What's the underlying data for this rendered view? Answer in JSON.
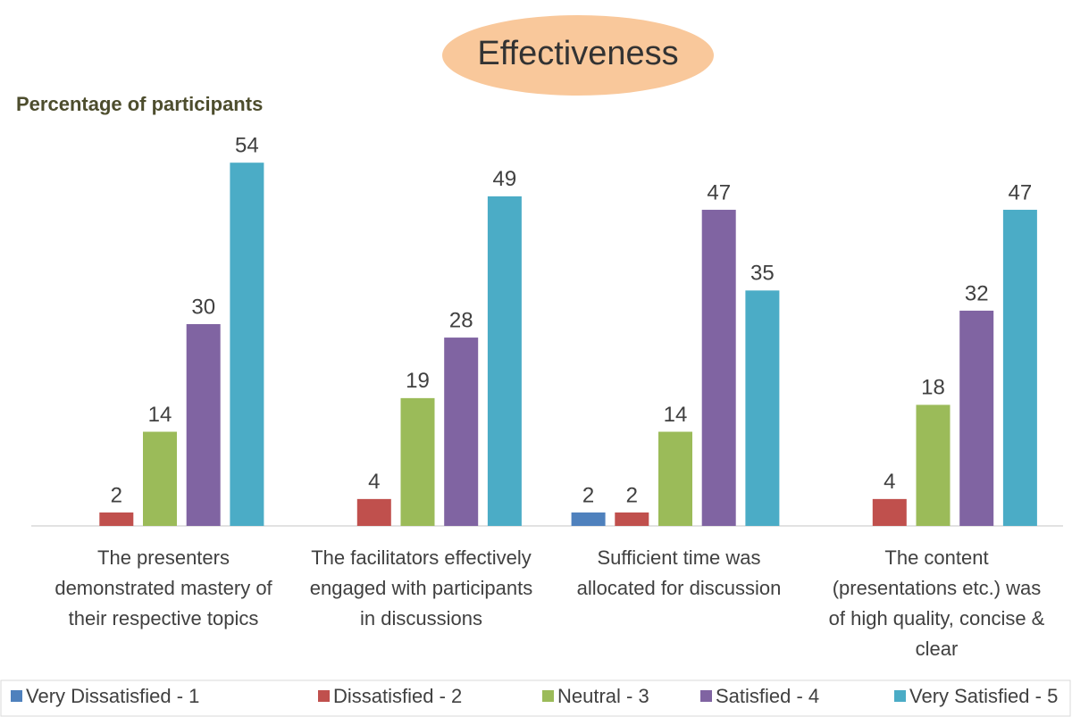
{
  "chart_data": {
    "type": "bar",
    "title": "Effectiveness",
    "y_label": "Percentage of participants",
    "categories": [
      "The presenters demonstrated mastery of their respective topics",
      "The facilitators effectively engaged with participants in discussions",
      "Sufficient time was allocated for discussion",
      "The content (presentations etc.) was of high quality, concise & clear"
    ],
    "series": [
      {
        "name": "Very Dissatisfied - 1",
        "color": "#4f81bd",
        "values": [
          null,
          null,
          2,
          null
        ]
      },
      {
        "name": "Dissatisfied - 2",
        "color": "#c0504d",
        "values": [
          2,
          4,
          2,
          4
        ]
      },
      {
        "name": "Neutral - 3",
        "color": "#9bbb59",
        "values": [
          14,
          19,
          14,
          18
        ]
      },
      {
        "name": "Satisfied - 4",
        "color": "#8064a2",
        "values": [
          30,
          28,
          47,
          32
        ]
      },
      {
        "name": "Very Satisfied - 5",
        "color": "#4bacc6",
        "values": [
          54,
          49,
          35,
          47
        ]
      }
    ],
    "ylim": [
      0,
      60
    ],
    "legend": "bottom"
  }
}
